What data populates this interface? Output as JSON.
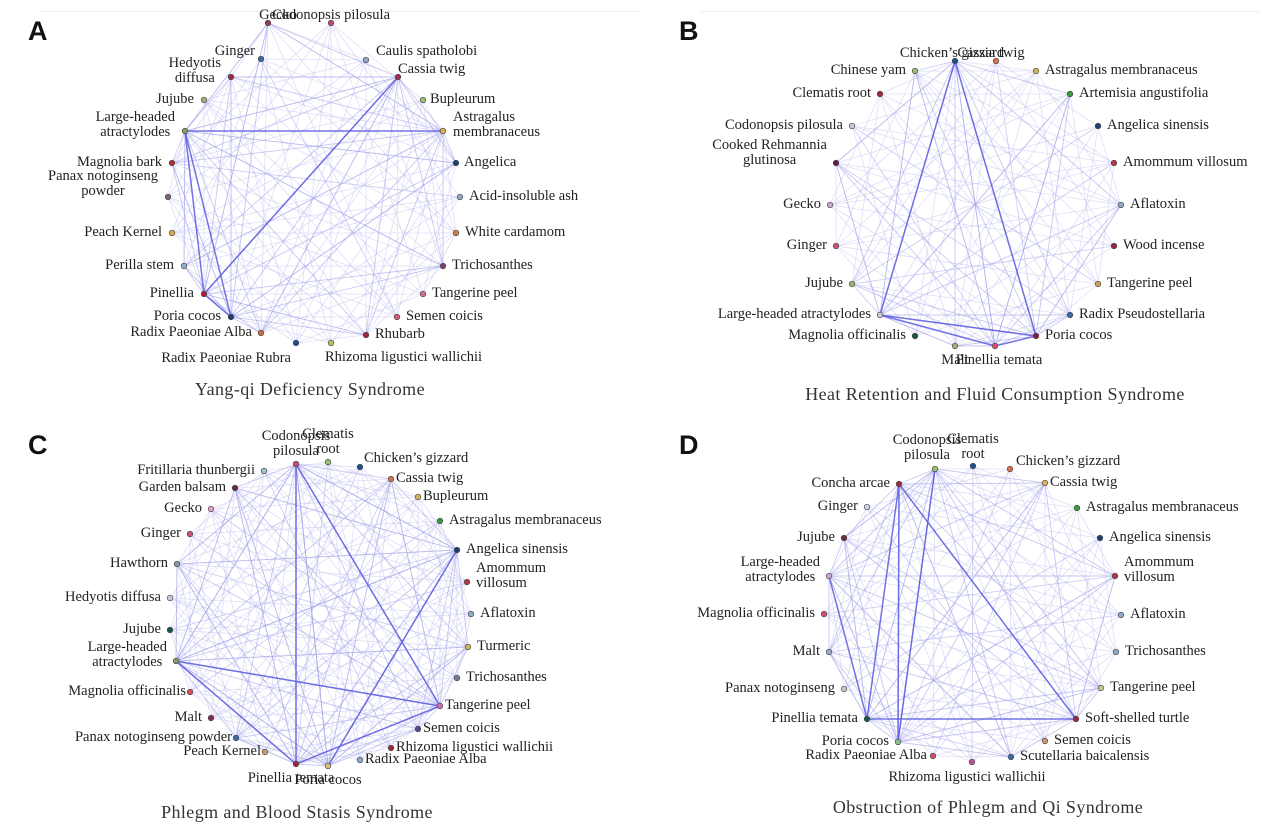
{
  "panels": [
    {
      "letter": "A",
      "caption": "Yang-qi Deficiency Syndrome",
      "nodes": [
        {
          "label": "Gecko",
          "color": "#8b3a62"
        },
        {
          "label": "Codonopsis pilosula",
          "color": "#c2477a"
        },
        {
          "label": "Caulis spatholobi",
          "color": "#8fa6c8"
        },
        {
          "label": "Cassia twig",
          "color": "#a6294f"
        },
        {
          "label": "Bupleurum",
          "color": "#9bbf6a"
        },
        {
          "label": "Astragalus\nmembranaceus",
          "color": "#d8b35a"
        },
        {
          "label": "Angelica",
          "color": "#1f3f6e"
        },
        {
          "label": "Acid-insoluble ash",
          "color": "#8fa8c6"
        },
        {
          "label": "White cardamom",
          "color": "#c97f4e"
        },
        {
          "label": "Trichosanthes",
          "color": "#7a3f7a"
        },
        {
          "label": "Tangerine peel",
          "color": "#d9708a"
        },
        {
          "label": "Semen coicis",
          "color": "#d25c7a"
        },
        {
          "label": "Rhubarb",
          "color": "#a0283c"
        },
        {
          "label": "Rhizoma ligustici wallichii",
          "color": "#b6c45a"
        },
        {
          "label": "Radix Paeoniae Rubra",
          "color": "#1f4f8f"
        },
        {
          "label": "Radix Paeoniae Alba",
          "color": "#d06a4a"
        },
        {
          "label": "Poria cocos",
          "color": "#1c3c6a"
        },
        {
          "label": "Pinellia",
          "color": "#a51e34"
        },
        {
          "label": "Perilla stem",
          "color": "#8fb0c6"
        },
        {
          "label": "Peach Kernel",
          "color": "#d9a84e"
        },
        {
          "label": "Panax notoginseng\npowder",
          "color": "#7b6a6a"
        },
        {
          "label": "Magnolia bark",
          "color": "#b22a3a"
        },
        {
          "label": "Large-headed\natractylodes",
          "color": "#8a9a5a"
        },
        {
          "label": "Jujube",
          "color": "#a0b070"
        },
        {
          "label": "Hedyotis\ndiffusa",
          "color": "#a0284a"
        },
        {
          "label": "Ginger",
          "color": "#3a6aa8"
        }
      ],
      "strong_edges": [
        [
          "Large-headed\natractylodes",
          "Pinellia"
        ],
        [
          "Large-headed\natractylodes",
          "Poria cocos"
        ],
        [
          "Large-headed\natractylodes",
          "Astragalus\nmembranaceus"
        ],
        [
          "Pinellia",
          "Poria cocos"
        ],
        [
          "Pinellia",
          "Cassia twig"
        ]
      ]
    },
    {
      "letter": "B",
      "caption": "Heat Retention and Fluid Consumption Syndrome",
      "nodes": [
        {
          "label": "Chicken’s gizzard",
          "color": "#1f4f8f"
        },
        {
          "label": "Cassia twig",
          "color": "#d9704e"
        },
        {
          "label": "Astragalus membranaceus",
          "color": "#d8b35a"
        },
        {
          "label": "Artemisia angustifolia",
          "color": "#3a9a3a"
        },
        {
          "label": "Angelica sinensis",
          "color": "#1f3f6e"
        },
        {
          "label": "Amommum villosum",
          "color": "#b03a4a"
        },
        {
          "label": "Aflatoxin",
          "color": "#8fa8c6"
        },
        {
          "label": "Wood incense",
          "color": "#a0283c"
        },
        {
          "label": "Tangerine peel",
          "color": "#d8a04e"
        },
        {
          "label": "Radix Pseudostellaria",
          "color": "#3a6aa8"
        },
        {
          "label": "Poria cocos",
          "color": "#8a1a3a"
        },
        {
          "label": "Pinellia temata",
          "color": "#d9506a"
        },
        {
          "label": "Malt",
          "color": "#a0b070"
        },
        {
          "label": "Magnolia officinalis",
          "color": "#1a5a3a"
        },
        {
          "label": "Large-headed atractylodes",
          "color": "#c8c8d8"
        },
        {
          "label": "Jujube",
          "color": "#a0b070"
        },
        {
          "label": "Ginger",
          "color": "#d0507a"
        },
        {
          "label": "Gecko",
          "color": "#c8a8d0"
        },
        {
          "label": "Cooked Rehmannia\nglutinosa",
          "color": "#5a1a4a"
        },
        {
          "label": "Codonopsis pilosula",
          "color": "#c8c8e0"
        },
        {
          "label": "Clematis root",
          "color": "#a0283c"
        },
        {
          "label": "Chinese yam",
          "color": "#9bbf6a"
        }
      ],
      "strong_edges": [
        [
          "Large-headed atractylodes",
          "Chicken’s gizzard"
        ],
        [
          "Large-headed atractylodes",
          "Poria cocos"
        ],
        [
          "Large-headed atractylodes",
          "Pinellia temata"
        ],
        [
          "Pinellia temata",
          "Poria cocos"
        ],
        [
          "Chicken’s gizzard",
          "Poria cocos"
        ]
      ]
    },
    {
      "letter": "C",
      "caption": "Phlegm and Blood Stasis Syndrome",
      "nodes": [
        {
          "label": "Codonopsis\npilosula",
          "color": "#c2477a"
        },
        {
          "label": "Clematis\nroot",
          "color": "#9bbf6a"
        },
        {
          "label": "Chicken’s gizzard",
          "color": "#1f4f8f"
        },
        {
          "label": "Cassia twig",
          "color": "#d9704e"
        },
        {
          "label": "Bupleurum",
          "color": "#d8b35a"
        },
        {
          "label": "Astragalus membranaceus",
          "color": "#3a9a3a"
        },
        {
          "label": "Angelica sinensis",
          "color": "#1f3f6e"
        },
        {
          "label": "Amommum\nvillosum",
          "color": "#b03a4a"
        },
        {
          "label": "Aflatoxin",
          "color": "#8fa8c6"
        },
        {
          "label": "Turmeric",
          "color": "#d8b35a"
        },
        {
          "label": "Trichosanthes",
          "color": "#7a7aa0"
        },
        {
          "label": "Tangerine peel",
          "color": "#d070b0"
        },
        {
          "label": "Semen coicis",
          "color": "#5a4a8a"
        },
        {
          "label": "Rhizoma ligustici wallichii",
          "color": "#a0283c"
        },
        {
          "label": "Radix Paeoniae Alba",
          "color": "#8fa8c6"
        },
        {
          "label": "Poria cocos",
          "color": "#d8c070"
        },
        {
          "label": "Pinellia temata",
          "color": "#a0283c"
        },
        {
          "label": "Peach Kernel",
          "color": "#c89a70"
        },
        {
          "label": "Panax notoginseng powder",
          "color": "#3a6aa8"
        },
        {
          "label": "Malt",
          "color": "#8a2a5a"
        },
        {
          "label": "Magnolia officinalis",
          "color": "#d05050"
        },
        {
          "label": "Large-headed\natractylodes",
          "color": "#8a9a5a"
        },
        {
          "label": "Jujube",
          "color": "#1a5a4a"
        },
        {
          "label": "Hedyotis diffusa",
          "color": "#c8c8d8"
        },
        {
          "label": "Hawthorn",
          "color": "#8a9a9a"
        },
        {
          "label": "Ginger",
          "color": "#d0507a"
        },
        {
          "label": "Gecko",
          "color": "#e0a0c0"
        },
        {
          "label": "Garden balsam",
          "color": "#6a2a4a"
        },
        {
          "label": "Fritillaria thunbergii",
          "color": "#a0c0d0"
        }
      ],
      "strong_edges": [
        [
          "Large-headed\natractylodes",
          "Pinellia temata"
        ],
        [
          "Large-headed\natractylodes",
          "Tangerine peel"
        ],
        [
          "Pinellia temata",
          "Codonopsis\npilosula"
        ],
        [
          "Pinellia temata",
          "Tangerine peel"
        ],
        [
          "Codonopsis\npilosula",
          "Tangerine peel"
        ],
        [
          "Poria cocos",
          "Angelica sinensis"
        ]
      ]
    },
    {
      "letter": "D",
      "caption": "Obstruction of Phlegm and Qi Syndrome",
      "nodes": [
        {
          "label": "Codonopsis\npilosula",
          "color": "#9bbf6a"
        },
        {
          "label": "Clematis\nroot",
          "color": "#1f4f8f"
        },
        {
          "label": "Chicken’s gizzard",
          "color": "#d9704e"
        },
        {
          "label": "Cassia twig",
          "color": "#d8b35a"
        },
        {
          "label": "Astragalus membranaceus",
          "color": "#3a9a3a"
        },
        {
          "label": "Angelica sinensis",
          "color": "#1f3f6e"
        },
        {
          "label": "Amommum\nvillosum",
          "color": "#b03a4a"
        },
        {
          "label": "Aflatoxin",
          "color": "#8fa8c6"
        },
        {
          "label": "Trichosanthes",
          "color": "#8fa8c6"
        },
        {
          "label": "Tangerine peel",
          "color": "#c8c88a"
        },
        {
          "label": "Soft-shelled turtle",
          "color": "#a0283c"
        },
        {
          "label": "Semen coicis",
          "color": "#c89a70"
        },
        {
          "label": "Scutellaria baicalensis",
          "color": "#3a6aa8"
        },
        {
          "label": "Rhizoma ligustici wallichii",
          "color": "#c050a0"
        },
        {
          "label": "Radix Paeoniae Alba",
          "color": "#d05070"
        },
        {
          "label": "Poria cocos",
          "color": "#8abf8a"
        },
        {
          "label": "Pinellia temata",
          "color": "#1a5a4a"
        },
        {
          "label": "Panax notoginseng",
          "color": "#c8c8c8"
        },
        {
          "label": "Malt",
          "color": "#9aa8c8"
        },
        {
          "label": "Magnolia officinalis",
          "color": "#d05070"
        },
        {
          "label": "Large-headed\natractylodes",
          "color": "#c8a8d0"
        },
        {
          "label": "Jujube",
          "color": "#6a2a4a"
        },
        {
          "label": "Ginger",
          "color": "#c8d8e0"
        },
        {
          "label": "Concha arcae",
          "color": "#a0283c"
        }
      ],
      "strong_edges": [
        [
          "Concha arcae",
          "Pinellia temata"
        ],
        [
          "Concha arcae",
          "Soft-shelled turtle"
        ],
        [
          "Concha arcae",
          "Poria cocos"
        ],
        [
          "Pinellia temata",
          "Soft-shelled turtle"
        ],
        [
          "Large-headed\natractylodes",
          "Pinellia temata"
        ],
        [
          "Codonopsis\npilosula",
          "Poria cocos"
        ]
      ]
    }
  ]
}
